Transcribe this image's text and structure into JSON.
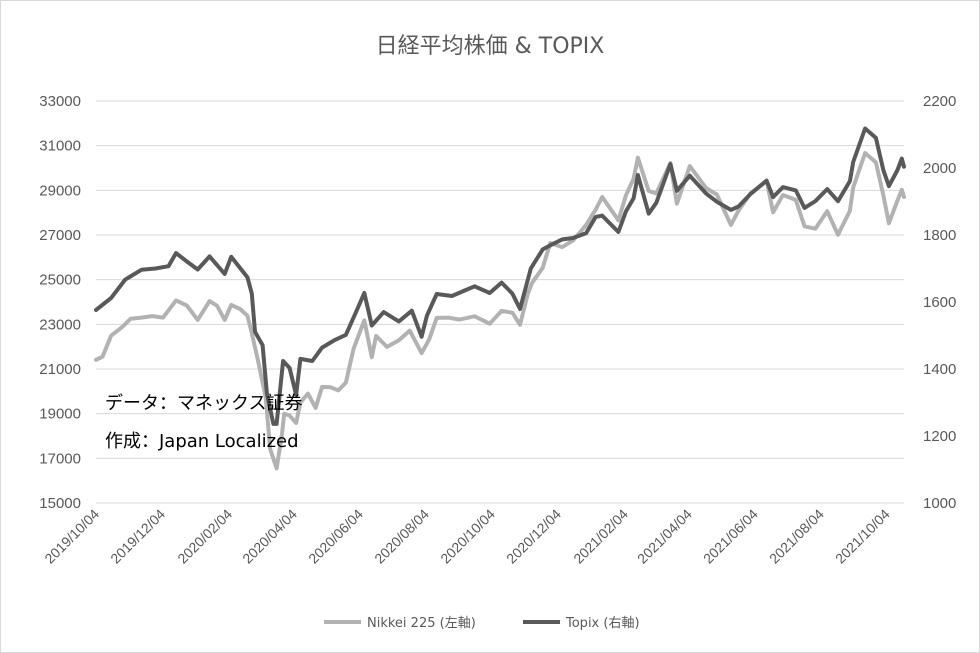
{
  "chart_data": {
    "type": "line",
    "title": "日経平均株価 & TOPIX",
    "xlabel": "",
    "ylabel": "",
    "x_ticks": [
      "2019/10/04",
      "2019/12/04",
      "2020/02/04",
      "2020/04/04",
      "2020/06/04",
      "2020/08/04",
      "2020/10/04",
      "2020/12/04",
      "2021/02/04",
      "2021/04/04",
      "2021/06/04",
      "2021/08/04",
      "2021/10/04"
    ],
    "x_range": [
      "2019/10/04",
      "2021/10/20"
    ],
    "y_left": {
      "ylim": [
        15000,
        33000
      ],
      "ticks": [
        15000,
        17000,
        19000,
        21000,
        23000,
        25000,
        27000,
        29000,
        31000,
        33000
      ]
    },
    "y_right": {
      "ylim": [
        1000,
        2200
      ],
      "ticks": [
        1000,
        1200,
        1400,
        1600,
        1800,
        2000,
        2200
      ]
    },
    "grid": true,
    "legend_position": "bottom",
    "annotations": [
      "データ：マネックス証券",
      "作成：Japan Localized"
    ],
    "series": [
      {
        "name": "Nikkei 225 (左軸)",
        "axis": "left",
        "color": "#b2b2b2",
        "points": [
          [
            "2019/10/04",
            21410
          ],
          [
            "2019/10/10",
            21550
          ],
          [
            "2019/10/18",
            22490
          ],
          [
            "2019/10/28",
            22870
          ],
          [
            "2019/11/05",
            23250
          ],
          [
            "2019/11/15",
            23300
          ],
          [
            "2019/11/25",
            23370
          ],
          [
            "2019/12/05",
            23300
          ],
          [
            "2019/12/17",
            24070
          ],
          [
            "2019/12/27",
            23840
          ],
          [
            "2020/01/06",
            23200
          ],
          [
            "2020/01/17",
            24040
          ],
          [
            "2020/01/24",
            23830
          ],
          [
            "2020/01/31",
            23200
          ],
          [
            "2020/02/06",
            23870
          ],
          [
            "2020/02/14",
            23690
          ],
          [
            "2020/02/21",
            23390
          ],
          [
            "2020/02/25",
            22600
          ],
          [
            "2020/03/02",
            21340
          ],
          [
            "2020/03/09",
            19700
          ],
          [
            "2020/03/13",
            17430
          ],
          [
            "2020/03/19",
            16550
          ],
          [
            "2020/03/24",
            18090
          ],
          [
            "2020/03/26",
            19000
          ],
          [
            "2020/03/31",
            18917
          ],
          [
            "2020/04/06",
            18580
          ],
          [
            "2020/04/10",
            19500
          ],
          [
            "2020/04/17",
            19900
          ],
          [
            "2020/04/24",
            19260
          ],
          [
            "2020/04/30",
            20200
          ],
          [
            "2020/05/08",
            20180
          ],
          [
            "2020/05/15",
            20040
          ],
          [
            "2020/05/22",
            20390
          ],
          [
            "2020/05/29",
            21880
          ],
          [
            "2020/06/08",
            23180
          ],
          [
            "2020/06/15",
            21530
          ],
          [
            "2020/06/19",
            22480
          ],
          [
            "2020/06/29",
            21990
          ],
          [
            "2020/07/10",
            22290
          ],
          [
            "2020/07/20",
            22720
          ],
          [
            "2020/07/31",
            21710
          ],
          [
            "2020/08/07",
            22330
          ],
          [
            "2020/08/14",
            23290
          ],
          [
            "2020/08/25",
            23300
          ],
          [
            "2020/09/04",
            23210
          ],
          [
            "2020/09/18",
            23360
          ],
          [
            "2020/10/02",
            23030
          ],
          [
            "2020/10/13",
            23600
          ],
          [
            "2020/10/23",
            23520
          ],
          [
            "2020/10/30",
            22980
          ],
          [
            "2020/11/06",
            24330
          ],
          [
            "2020/11/10",
            24840
          ],
          [
            "2020/11/20",
            25530
          ],
          [
            "2020/11/27",
            26640
          ],
          [
            "2020/12/08",
            26460
          ],
          [
            "2020/12/18",
            26760
          ],
          [
            "2020/12/30",
            27440
          ],
          [
            "2021/01/08",
            28140
          ],
          [
            "2021/01/14",
            28700
          ],
          [
            "2021/01/29",
            27660
          ],
          [
            "2021/02/05",
            28780
          ],
          [
            "2021/02/12",
            29520
          ],
          [
            "2021/02/16",
            30460
          ],
          [
            "2021/02/26",
            28970
          ],
          [
            "2021/03/05",
            28860
          ],
          [
            "2021/03/18",
            30220
          ],
          [
            "2021/03/24",
            28400
          ],
          [
            "2021/04/05",
            30090
          ],
          [
            "2021/04/20",
            29100
          ],
          [
            "2021/04/30",
            28810
          ],
          [
            "2021/05/13",
            27450
          ],
          [
            "2021/05/20",
            28090
          ],
          [
            "2021/05/31",
            28860
          ],
          [
            "2021/06/15",
            29440
          ],
          [
            "2021/06/21",
            28010
          ],
          [
            "2021/06/30",
            28790
          ],
          [
            "2021/07/12",
            28570
          ],
          [
            "2021/07/20",
            27390
          ],
          [
            "2021/07/30",
            27280
          ],
          [
            "2021/08/10",
            28070
          ],
          [
            "2021/08/20",
            27010
          ],
          [
            "2021/08/31",
            28090
          ],
          [
            "2021/09/03",
            29130
          ],
          [
            "2021/09/14",
            30670
          ],
          [
            "2021/09/24",
            30250
          ],
          [
            "2021/10/01",
            28770
          ],
          [
            "2021/10/06",
            27530
          ],
          [
            "2021/10/14",
            28550
          ],
          [
            "2021/10/18",
            29030
          ],
          [
            "2021/10/20",
            28700
          ]
        ]
      },
      {
        "name": "Topix (右軸)",
        "axis": "right",
        "color": "#595959",
        "points": [
          [
            "2019/10/04",
            1576
          ],
          [
            "2019/10/18",
            1612
          ],
          [
            "2019/10/31",
            1667
          ],
          [
            "2019/11/15",
            1696
          ],
          [
            "2019/11/28",
            1700
          ],
          [
            "2019/12/10",
            1707
          ],
          [
            "2019/12/17",
            1746
          ],
          [
            "2019/12/27",
            1721
          ],
          [
            "2020/01/06",
            1697
          ],
          [
            "2020/01/17",
            1736
          ],
          [
            "2020/01/31",
            1684
          ],
          [
            "2020/02/06",
            1735
          ],
          [
            "2020/02/21",
            1674
          ],
          [
            "2020/02/25",
            1625
          ],
          [
            "2020/02/28",
            1511
          ],
          [
            "2020/03/06",
            1471
          ],
          [
            "2020/03/10",
            1327
          ],
          [
            "2020/03/16",
            1236
          ],
          [
            "2020/03/19",
            1236
          ],
          [
            "2020/03/25",
            1424
          ],
          [
            "2020/03/31",
            1403
          ],
          [
            "2020/04/06",
            1323
          ],
          [
            "2020/04/10",
            1430
          ],
          [
            "2020/04/21",
            1424
          ],
          [
            "2020/04/30",
            1464
          ],
          [
            "2020/05/12",
            1487
          ],
          [
            "2020/05/22",
            1502
          ],
          [
            "2020/06/02",
            1582
          ],
          [
            "2020/06/08",
            1627
          ],
          [
            "2020/06/15",
            1530
          ],
          [
            "2020/06/26",
            1570
          ],
          [
            "2020/07/10",
            1542
          ],
          [
            "2020/07/22",
            1574
          ],
          [
            "2020/07/31",
            1496
          ],
          [
            "2020/08/05",
            1560
          ],
          [
            "2020/08/14",
            1624
          ],
          [
            "2020/08/28",
            1618
          ],
          [
            "2020/09/08",
            1633
          ],
          [
            "2020/09/18",
            1647
          ],
          [
            "2020/10/02",
            1627
          ],
          [
            "2020/10/13",
            1658
          ],
          [
            "2020/10/23",
            1625
          ],
          [
            "2020/10/30",
            1579
          ],
          [
            "2020/11/09",
            1700
          ],
          [
            "2020/11/20",
            1757
          ],
          [
            "2020/11/30",
            1774
          ],
          [
            "2020/12/08",
            1787
          ],
          [
            "2020/12/18",
            1791
          ],
          [
            "2020/12/30",
            1805
          ],
          [
            "2021/01/08",
            1854
          ],
          [
            "2021/01/14",
            1858
          ],
          [
            "2021/01/29",
            1809
          ],
          [
            "2021/02/05",
            1871
          ],
          [
            "2021/02/12",
            1910
          ],
          [
            "2021/02/16",
            1979
          ],
          [
            "2021/02/26",
            1864
          ],
          [
            "2021/03/05",
            1896
          ],
          [
            "2021/03/18",
            2012
          ],
          [
            "2021/03/24",
            1932
          ],
          [
            "2021/04/05",
            1977
          ],
          [
            "2021/04/20",
            1924
          ],
          [
            "2021/04/30",
            1899
          ],
          [
            "2021/05/13",
            1875
          ],
          [
            "2021/05/20",
            1885
          ],
          [
            "2021/05/31",
            1922
          ],
          [
            "2021/06/15",
            1962
          ],
          [
            "2021/06/21",
            1913
          ],
          [
            "2021/06/30",
            1943
          ],
          [
            "2021/07/12",
            1933
          ],
          [
            "2021/07/20",
            1881
          ],
          [
            "2021/07/30",
            1901
          ],
          [
            "2021/08/10",
            1937
          ],
          [
            "2021/08/20",
            1901
          ],
          [
            "2021/08/31",
            1961
          ],
          [
            "2021/09/03",
            2018
          ],
          [
            "2021/09/14",
            2118
          ],
          [
            "2021/09/24",
            2090
          ],
          [
            "2021/10/01",
            1993
          ],
          [
            "2021/10/06",
            1946
          ],
          [
            "2021/10/14",
            1994
          ],
          [
            "2021/10/18",
            2028
          ],
          [
            "2021/10/20",
            2004
          ]
        ]
      }
    ]
  }
}
